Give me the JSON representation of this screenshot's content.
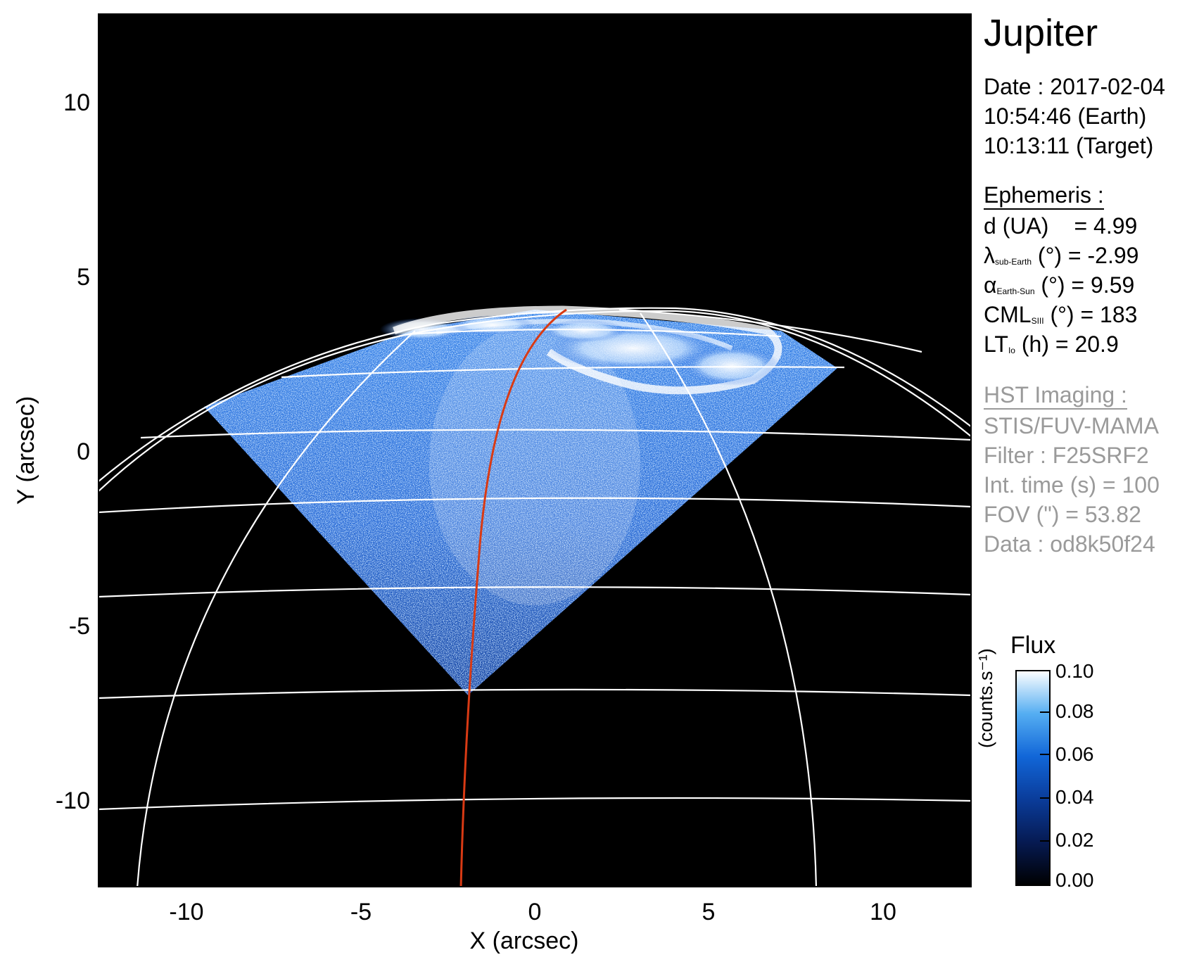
{
  "plot": {
    "x_axis_label": "X (arcsec)",
    "y_axis_label": "Y (arcsec)",
    "x_ticks": [
      "-10",
      "-5",
      "0",
      "5",
      "10"
    ],
    "y_ticks": [
      "10",
      "5",
      "0",
      "-5",
      "-10"
    ],
    "xlim": [
      -12.5,
      12.5
    ],
    "ylim": [
      -12.3,
      12.3
    ]
  },
  "info": {
    "target": "Jupiter",
    "date_line": "Date : 2017-02-04",
    "earth_time": "10:54:46 (Earth)",
    "target_time": "10:13:11 (Target)",
    "ephemeris_header": "Ephemeris :",
    "d_label": "d (UA)",
    "d_value": "= 4.99",
    "lambda_sym": "λ",
    "lambda_sub": "sub-Earth",
    "lambda_rest": " (°) = -2.99",
    "alpha_sym": "α",
    "alpha_sub": "Earth-Sun",
    "alpha_rest": " (°) = 9.59",
    "cml_sym": "CML",
    "cml_sub": "SIII",
    "cml_rest": " (°) = 183",
    "lt_sym": "LT",
    "lt_sub": "Io",
    "lt_rest": " (h) = 20.9",
    "hst_header": "HST Imaging :",
    "instrument": "STIS/FUV-MAMA",
    "filter": "Filter : F25SRF2",
    "int_time": "Int. time (s) = 100",
    "fov": "FOV (\") = 53.82",
    "data_id": "Data : od8k50f24"
  },
  "colorbar": {
    "title": "Flux",
    "unit": "(counts.s⁻¹)",
    "ticks": [
      "0.10",
      "0.08",
      "0.06",
      "0.04",
      "0.02",
      "0.00"
    ],
    "range": [
      0.0,
      0.1
    ]
  },
  "colors": {
    "background": "#000000",
    "emission": "#1a5fd0",
    "aurora": "#ffffff",
    "grid": "#ffffff",
    "meridian": "#d93a14"
  }
}
